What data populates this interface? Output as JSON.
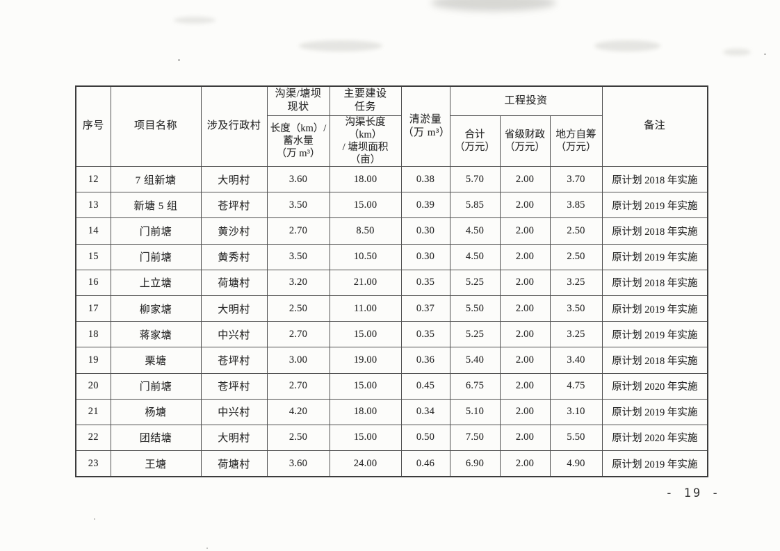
{
  "document": {
    "page_number": "- 19 -"
  },
  "table": {
    "headers": {
      "seq": "序号",
      "project": "项目名称",
      "village": "涉及行政村",
      "status_group": "沟渠/塘坝\n现状",
      "status_sub": "长度（km）/\n蓄水量\n（万 m³）",
      "task_group": "主要建设\n任务",
      "task_sub": "沟渠长度（km）\n/ 塘坝面积\n（亩）",
      "dredge": "清淤量\n（万 m³）",
      "invest_group": "工程投资",
      "invest_total": "合计\n（万元）",
      "invest_provincial": "省级财政\n（万元）",
      "invest_local": "地方自筹\n（万元）",
      "remark": "备注"
    },
    "rows": [
      {
        "seq": "12",
        "name": "7 组新塘",
        "village": "大明村",
        "status": "3.60",
        "task": "18.00",
        "dredge": "0.38",
        "total": "5.70",
        "provincial": "2.00",
        "local": "3.70",
        "remark": "原计划 2018 年实施"
      },
      {
        "seq": "13",
        "name": "新塘 5 组",
        "village": "苍坪村",
        "status": "3.50",
        "task": "15.00",
        "dredge": "0.39",
        "total": "5.85",
        "provincial": "2.00",
        "local": "3.85",
        "remark": "原计划 2019 年实施"
      },
      {
        "seq": "14",
        "name": "门前塘",
        "village": "黄沙村",
        "status": "2.70",
        "task": "8.50",
        "dredge": "0.30",
        "total": "4.50",
        "provincial": "2.00",
        "local": "2.50",
        "remark": "原计划 2018 年实施"
      },
      {
        "seq": "15",
        "name": "门前塘",
        "village": "黄秀村",
        "status": "3.50",
        "task": "10.50",
        "dredge": "0.30",
        "total": "4.50",
        "provincial": "2.00",
        "local": "2.50",
        "remark": "原计划 2019 年实施"
      },
      {
        "seq": "16",
        "name": "上立塘",
        "village": "荷塘村",
        "status": "3.20",
        "task": "21.00",
        "dredge": "0.35",
        "total": "5.25",
        "provincial": "2.00",
        "local": "3.25",
        "remark": "原计划 2018 年实施"
      },
      {
        "seq": "17",
        "name": "柳家塘",
        "village": "大明村",
        "status": "2.50",
        "task": "11.00",
        "dredge": "0.37",
        "total": "5.50",
        "provincial": "2.00",
        "local": "3.50",
        "remark": "原计划 2019 年实施"
      },
      {
        "seq": "18",
        "name": "蒋家塘",
        "village": "中兴村",
        "status": "2.70",
        "task": "15.00",
        "dredge": "0.35",
        "total": "5.25",
        "provincial": "2.00",
        "local": "3.25",
        "remark": "原计划 2019 年实施"
      },
      {
        "seq": "19",
        "name": "栗塘",
        "village": "苍坪村",
        "status": "3.00",
        "task": "19.00",
        "dredge": "0.36",
        "total": "5.40",
        "provincial": "2.00",
        "local": "3.40",
        "remark": "原计划 2018 年实施"
      },
      {
        "seq": "20",
        "name": "门前塘",
        "village": "苍坪村",
        "status": "2.70",
        "task": "15.00",
        "dredge": "0.45",
        "total": "6.75",
        "provincial": "2.00",
        "local": "4.75",
        "remark": "原计划 2020 年实施"
      },
      {
        "seq": "21",
        "name": "杨塘",
        "village": "中兴村",
        "status": "4.20",
        "task": "18.00",
        "dredge": "0.34",
        "total": "5.10",
        "provincial": "2.00",
        "local": "3.10",
        "remark": "原计划 2019 年实施"
      },
      {
        "seq": "22",
        "name": "团结塘",
        "village": "大明村",
        "status": "2.50",
        "task": "15.00",
        "dredge": "0.50",
        "total": "7.50",
        "provincial": "2.00",
        "local": "5.50",
        "remark": "原计划 2020 年实施"
      },
      {
        "seq": "23",
        "name": "王塘",
        "village": "荷塘村",
        "status": "3.60",
        "task": "24.00",
        "dredge": "0.46",
        "total": "6.90",
        "provincial": "2.00",
        "local": "4.90",
        "remark": "原计划 2019 年实施"
      }
    ]
  }
}
